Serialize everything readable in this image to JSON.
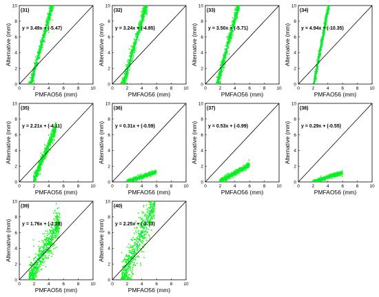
{
  "colors": {
    "points": "#00ff00",
    "fit_line": "#3399ff",
    "ref_line": "#000000",
    "axes": "#000000"
  },
  "chart_data": [
    {
      "type": "scatter",
      "label": "(31)",
      "equation": "y = 3.49x + (-5.47)",
      "slope": 3.49,
      "intercept": -5.47,
      "xlabel": "PMFAO56 (mm)",
      "ylabel": "Alternative (mm)",
      "xlim": [
        0,
        10
      ],
      "ylim": [
        0,
        10
      ],
      "xticks": [
        0,
        2,
        4,
        6,
        8,
        10
      ],
      "yticks": [
        0,
        2,
        4,
        6,
        8,
        10
      ],
      "reference_line": "1:1",
      "cloud": {
        "x_range": [
          1.3,
          4.8
        ],
        "spread": 0.6
      }
    },
    {
      "type": "scatter",
      "label": "(32)",
      "equation": "y = 3.24x + (-4.85)",
      "slope": 3.24,
      "intercept": -4.85,
      "xlabel": "PMFAO56 (mm)",
      "ylabel": "Alternative (mm)",
      "xlim": [
        0,
        10
      ],
      "ylim": [
        0,
        10
      ],
      "xticks": [
        0,
        2,
        4,
        6,
        8,
        10
      ],
      "yticks": [
        0,
        2,
        4,
        6,
        8,
        10
      ],
      "reference_line": "1:1",
      "cloud": {
        "x_range": [
          1.2,
          4.8
        ],
        "spread": 0.6
      }
    },
    {
      "type": "scatter",
      "label": "(33)",
      "equation": "y = 3.50x + (-5.71)",
      "slope": 3.5,
      "intercept": -5.71,
      "xlabel": "PMFAO56 (mm)",
      "ylabel": "Alternative (mm)",
      "xlim": [
        0,
        10
      ],
      "ylim": [
        0,
        10
      ],
      "xticks": [
        0,
        2,
        4,
        6,
        8,
        10
      ],
      "yticks": [
        0,
        2,
        4,
        6,
        8,
        10
      ],
      "reference_line": "1:1",
      "cloud": {
        "x_range": [
          1.5,
          4.8
        ],
        "spread": 0.6
      }
    },
    {
      "type": "scatter",
      "label": "(34)",
      "equation": "y = 4.94x + (-10.35)",
      "slope": 4.94,
      "intercept": -10.35,
      "xlabel": "PMFAO56 (mm)",
      "ylabel": "Alternative (mm)",
      "xlim": [
        0,
        10
      ],
      "ylim": [
        0,
        10
      ],
      "xticks": [
        0,
        2,
        4,
        6,
        8,
        10
      ],
      "yticks": [
        0,
        2,
        4,
        6,
        8,
        10
      ],
      "reference_line": "1:1",
      "cloud": {
        "x_range": [
          2.1,
          4.3
        ],
        "spread": 0.5
      }
    },
    {
      "type": "scatter",
      "label": "(35)",
      "equation": "y = 2.21x + (-4.11)",
      "slope": 2.21,
      "intercept": -4.11,
      "xlabel": "PMFAO56 (mm)",
      "ylabel": "Alternative (mm)",
      "xlim": [
        0,
        10
      ],
      "ylim": [
        0,
        10
      ],
      "xticks": [
        0,
        2,
        4,
        6,
        8,
        10
      ],
      "yticks": [
        0,
        2,
        4,
        6,
        8,
        10
      ],
      "reference_line": "1:1",
      "cloud": {
        "x_range": [
          1.9,
          5.0
        ],
        "spread": 0.5
      }
    },
    {
      "type": "scatter",
      "label": "(36)",
      "equation": "y = 0.31x + (-0.59)",
      "slope": 0.31,
      "intercept": -0.59,
      "xlabel": "PMFAO56 (mm)",
      "ylabel": "Alternative (mm)",
      "xlim": [
        0,
        10
      ],
      "ylim": [
        0,
        10
      ],
      "xticks": [
        0,
        2,
        4,
        6,
        8,
        10
      ],
      "yticks": [
        0,
        2,
        4,
        6,
        8,
        10
      ],
      "reference_line": "1:1",
      "cloud": {
        "x_range": [
          1.9,
          6.0
        ],
        "spread": 0.15
      }
    },
    {
      "type": "scatter",
      "label": "(37)",
      "equation": "y = 0.53x + (-0.99)",
      "slope": 0.53,
      "intercept": -0.99,
      "xlabel": "PMFAO56 (mm)",
      "ylabel": "Alternative (mm)",
      "xlim": [
        0,
        10
      ],
      "ylim": [
        0,
        10
      ],
      "xticks": [
        0,
        2,
        4,
        6,
        8,
        10
      ],
      "yticks": [
        0,
        2,
        4,
        6,
        8,
        10
      ],
      "reference_line": "1:1",
      "cloud": {
        "x_range": [
          1.9,
          6.0
        ],
        "spread": 0.2
      }
    },
    {
      "type": "scatter",
      "label": "(38)",
      "equation": "y = 0.29x + (-0.55)",
      "slope": 0.29,
      "intercept": -0.55,
      "xlabel": "PMFAO56 (mm)",
      "ylabel": "Alternative (mm)",
      "xlim": [
        0,
        10
      ],
      "ylim": [
        0,
        10
      ],
      "xticks": [
        0,
        2,
        4,
        6,
        8,
        10
      ],
      "yticks": [
        0,
        2,
        4,
        6,
        8,
        10
      ],
      "reference_line": "1:1",
      "cloud": {
        "x_range": [
          1.9,
          6.0
        ],
        "spread": 0.15
      }
    },
    {
      "type": "scatter",
      "label": "(39)",
      "equation": "y = 1.76x + (-2.28)",
      "slope": 1.76,
      "intercept": -2.28,
      "xlabel": "PMFAO56 (mm)",
      "ylabel": "Alternative (mm)",
      "xlim": [
        0,
        10
      ],
      "ylim": [
        0,
        10
      ],
      "xticks": [
        0,
        2,
        4,
        6,
        8,
        10
      ],
      "yticks": [
        0,
        2,
        4,
        6,
        8,
        10
      ],
      "reference_line": "1:1",
      "cloud": {
        "x_range": [
          1.3,
          5.5
        ],
        "spread": 1.2
      }
    },
    {
      "type": "scatter",
      "label": "(40)",
      "equation": "y = 2.25x + (-3.13)",
      "slope": 2.25,
      "intercept": -3.13,
      "xlabel": "PMFAO56 (mm)",
      "ylabel": "Alternative (mm)",
      "xlim": [
        0,
        10
      ],
      "ylim": [
        0,
        10
      ],
      "xticks": [
        0,
        2,
        4,
        6,
        8,
        10
      ],
      "yticks": [
        0,
        2,
        4,
        6,
        8,
        10
      ],
      "reference_line": "1:1",
      "cloud": {
        "x_range": [
          1.2,
          5.8
        ],
        "spread": 1.6
      }
    }
  ]
}
